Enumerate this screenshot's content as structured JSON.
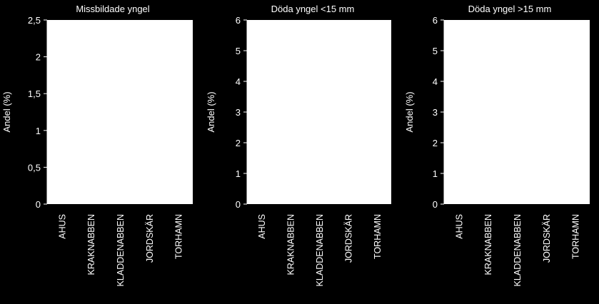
{
  "chart_data": [
    {
      "type": "bar",
      "title": "Missbildade yngel",
      "xlabel": "",
      "ylabel": "Andel (%)",
      "categories": [
        "AHUS",
        "KRAKNABBEN",
        "KLADDENABBEN",
        "JORDSKÄR",
        "TORHAMN"
      ],
      "values": [
        0,
        0,
        0,
        0,
        0
      ],
      "ylim": [
        0,
        2.5
      ],
      "yticks": [
        "0",
        "0,5",
        "1",
        "1,5",
        "2",
        "2,5"
      ],
      "grid": false,
      "background": "#ffffff"
    },
    {
      "type": "bar",
      "title": "Döda yngel <15 mm",
      "xlabel": "",
      "ylabel": "Andel (%)",
      "categories": [
        "AHUS",
        "KRAKNABBEN",
        "KLADDENABBEN",
        "JORDSKÄR",
        "TORHAMN"
      ],
      "values": [
        0,
        0,
        0,
        0,
        0
      ],
      "ylim": [
        0,
        6
      ],
      "yticks": [
        "0",
        "1",
        "2",
        "3",
        "4",
        "5",
        "6"
      ],
      "grid": false,
      "background": "#ffffff"
    },
    {
      "type": "bar",
      "title": "Döda yngel >15 mm",
      "xlabel": "",
      "ylabel": "Andel (%)",
      "categories": [
        "AHUS",
        "KRAKNABBEN",
        "KLADDENABBEN",
        "JORDSKÄR",
        "TORHAMN"
      ],
      "values": [
        0,
        0,
        0,
        0,
        0
      ],
      "ylim": [
        0,
        6
      ],
      "yticks": [
        "0",
        "1",
        "2",
        "3",
        "4",
        "5",
        "6"
      ],
      "grid": false,
      "background": "#ffffff"
    }
  ]
}
